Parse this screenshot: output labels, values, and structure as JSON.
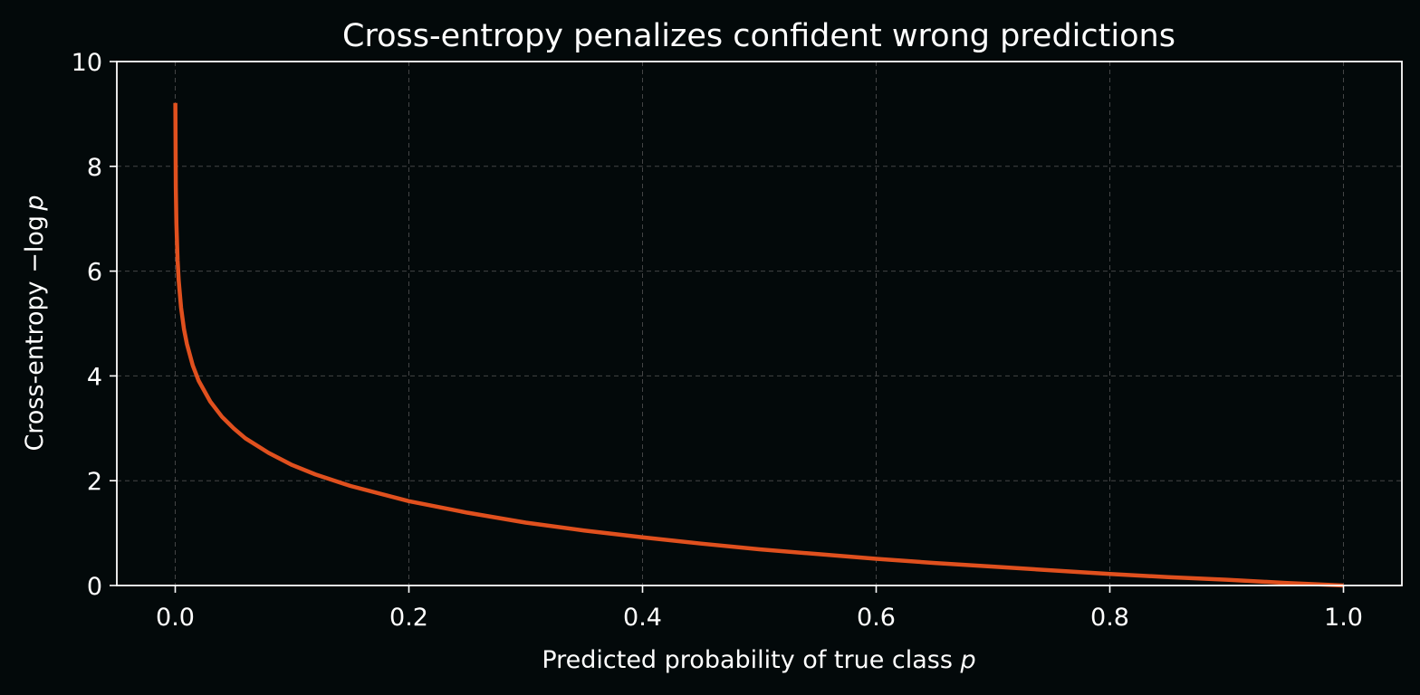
{
  "chart_data": {
    "type": "line",
    "title": "Cross-entropy penalizes confident wrong predictions",
    "xlabel_text": "Predicted probability of true class ",
    "xlabel_var": "p",
    "ylabel_text": "Cross-entropy −log ",
    "ylabel_var": "p",
    "xlim": [
      -0.05,
      1.05
    ],
    "ylim": [
      0,
      10
    ],
    "xticks": [
      0.0,
      0.2,
      0.4,
      0.6,
      0.8,
      1.0
    ],
    "xtick_labels": [
      "0.0",
      "0.2",
      "0.4",
      "0.6",
      "0.8",
      "1.0"
    ],
    "yticks": [
      0,
      2,
      4,
      6,
      8,
      10
    ],
    "ytick_labels": [
      "0",
      "2",
      "4",
      "6",
      "8",
      "10"
    ],
    "grid": true,
    "colors": {
      "background": "#03090a",
      "line": "#e0501e",
      "grid": "#5a5a5a",
      "text": "#ffffff"
    },
    "series": [
      {
        "x": [
          0.0001,
          0.0005,
          0.001,
          0.002,
          0.003,
          0.005,
          0.0075,
          0.01,
          0.015,
          0.02,
          0.03,
          0.04,
          0.05,
          0.06,
          0.08,
          0.1,
          0.12,
          0.15,
          0.2,
          0.25,
          0.3,
          0.35,
          0.4,
          0.45,
          0.5,
          0.55,
          0.6,
          0.65,
          0.7,
          0.75,
          0.8,
          0.85,
          0.9,
          0.95,
          1.0
        ],
        "y": [
          9.21,
          7.6,
          6.91,
          6.21,
          5.81,
          5.3,
          4.89,
          4.61,
          4.2,
          3.91,
          3.51,
          3.22,
          3.0,
          2.81,
          2.53,
          2.3,
          2.12,
          1.9,
          1.61,
          1.39,
          1.2,
          1.05,
          0.92,
          0.8,
          0.69,
          0.6,
          0.51,
          0.43,
          0.36,
          0.29,
          0.22,
          0.16,
          0.11,
          0.05,
          0.0
        ]
      }
    ]
  }
}
